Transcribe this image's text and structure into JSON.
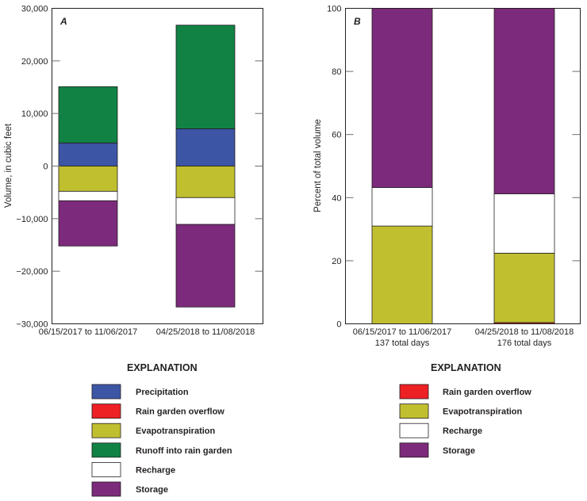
{
  "colors": {
    "Precipitation": "#3c55a5",
    "Rain garden overflow": "#ed2024",
    "Evapotranspiration": "#c0bf30",
    "Runoff into rain garden": "#118244",
    "Recharge": "#ffffff",
    "Storage": "#7c2a7b"
  },
  "chart_data": [
    {
      "type": "bar",
      "stacked": true,
      "panel_label": "A",
      "title": "",
      "xlabel": "",
      "ylabel": "Volume, in cubic feet",
      "ylim": [
        -30000,
        30000
      ],
      "yticks": [
        30000,
        20000,
        10000,
        0,
        -10000,
        -20000,
        -30000
      ],
      "ytick_labels": [
        "30,000",
        "20,000",
        "10,000",
        "0",
        "−10,000",
        "−20,000",
        "−30,000"
      ],
      "categories": [
        "06/15/2017 to 11/06/2017",
        "04/25/2018 to 11/08/2018"
      ],
      "category_sublabels": [],
      "grid": false,
      "series": [
        {
          "name": "Precipitation",
          "values": [
            4400,
            7100
          ]
        },
        {
          "name": "Runoff into rain garden",
          "values": [
            10700,
            19700
          ]
        },
        {
          "name": "Evapotranspiration",
          "values": [
            -4800,
            -6000
          ]
        },
        {
          "name": "Recharge",
          "values": [
            -1800,
            -5100
          ]
        },
        {
          "name": "Storage",
          "values": [
            -8600,
            -15700
          ]
        }
      ],
      "legend": {
        "title": "EXPLANATION",
        "placement": "bottom",
        "entries": [
          "Precipitation",
          "Rain garden overflow",
          "Evapotranspiration",
          "Runoff into rain garden",
          "Recharge",
          "Storage"
        ]
      }
    },
    {
      "type": "bar",
      "stacked": true,
      "panel_label": "B",
      "title": "",
      "xlabel": "",
      "ylabel": "Percent of total volume",
      "ylim": [
        0,
        100
      ],
      "yticks": [
        100,
        80,
        60,
        40,
        20,
        0
      ],
      "ytick_labels": [
        "100",
        "80",
        "60",
        "40",
        "20",
        "0"
      ],
      "categories": [
        "06/15/2017 to 11/06/2017",
        "04/25/2018 to 11/08/2018"
      ],
      "category_sublabels": [
        "137 total days",
        "176 total days"
      ],
      "grid": false,
      "series": [
        {
          "name": "Rain garden overflow",
          "values": [
            0,
            0.4
          ]
        },
        {
          "name": "Evapotranspiration",
          "values": [
            31.0,
            22.0
          ]
        },
        {
          "name": "Recharge",
          "values": [
            12.2,
            18.8
          ]
        },
        {
          "name": "Storage",
          "values": [
            56.8,
            58.8
          ]
        }
      ],
      "legend": {
        "title": "EXPLANATION",
        "placement": "bottom",
        "entries": [
          "Rain garden overflow",
          "Evapotranspiration",
          "Recharge",
          "Storage"
        ]
      }
    }
  ]
}
